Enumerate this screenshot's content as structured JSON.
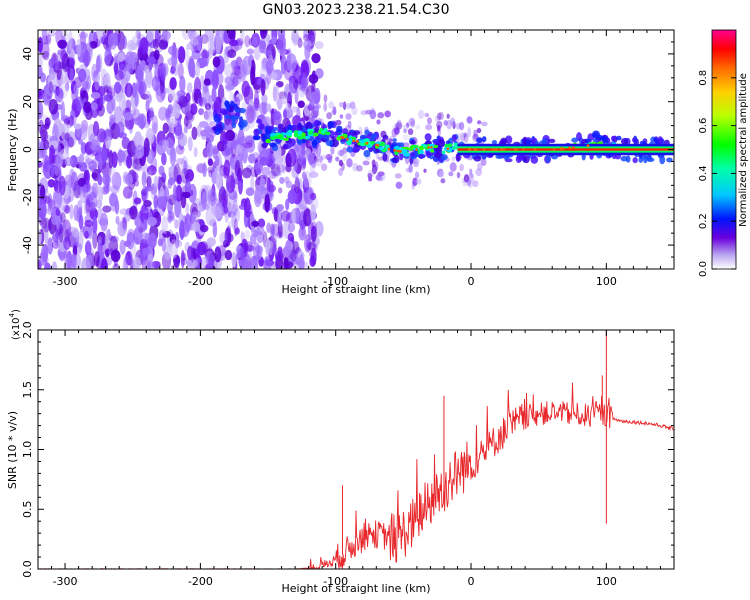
{
  "figure": {
    "title": "GN03.2023.238.21.54.C30"
  },
  "chart_data": [
    {
      "type": "heatmap",
      "title": "GN03.2023.238.21.54.C30",
      "xlabel": "Height of straight line (km)",
      "ylabel": "Frequency (Hz)",
      "xlim": [
        -320,
        150
      ],
      "ylim": [
        -50,
        50
      ],
      "xticks": [
        -300,
        -200,
        -100,
        0,
        100
      ],
      "yticks": [
        -40,
        -20,
        0,
        20,
        40
      ],
      "colorbar": {
        "label": "Normalized spectral amplitude",
        "range": [
          0.0,
          1.0
        ],
        "ticks": [
          "0.0",
          "0.2",
          "0.4",
          "0.6",
          "0.8"
        ],
        "tick_values": [
          0.0,
          0.2,
          0.4,
          0.6,
          0.8
        ]
      },
      "noise_region_x": [
        -320,
        -120
      ],
      "ridge": {
        "x": [
          -185,
          -180,
          -150,
          -130,
          -110,
          -100,
          -90,
          -80,
          -70,
          -60,
          -50,
          -40,
          -30,
          -20,
          -10,
          0,
          20,
          40,
          60,
          80,
          90,
          100,
          120,
          150
        ],
        "y": [
          12,
          16,
          5,
          6,
          7,
          6,
          4,
          3,
          2,
          0,
          -1,
          0,
          1,
          0,
          1,
          0,
          0,
          0,
          0,
          1,
          2,
          1,
          0,
          0
        ]
      },
      "flat_line_y": 0,
      "grid": false
    },
    {
      "type": "line",
      "xlabel": "Height of straight line (km)",
      "ylabel": "SNR (10 * v/v)",
      "y_multiplier": "(x10",
      "y_multiplier_exp": "4",
      "y_multiplier_close": ")",
      "xlim": [
        -320,
        150
      ],
      "ylim": [
        0,
        2.0
      ],
      "xticks": [
        -300,
        -200,
        -100,
        0,
        100
      ],
      "yticks": [
        "0.0",
        "0.5",
        "1.0",
        "1.5",
        "2.0"
      ],
      "ytick_values": [
        0,
        0.5,
        1.0,
        1.5,
        2.0
      ],
      "series": [
        {
          "color": "#e8262a",
          "x": [
            -320,
            -200,
            -130,
            -115,
            -105,
            -95,
            -85,
            -75,
            -65,
            -55,
            -45,
            -35,
            -25,
            -15,
            -5,
            0,
            10,
            20,
            30,
            40,
            50,
            60,
            70,
            80,
            90,
            95,
            100,
            105,
            110,
            120,
            130,
            140,
            150
          ],
          "y": [
            0.0,
            0.0,
            0.0,
            0.01,
            0.05,
            0.12,
            0.22,
            0.3,
            0.28,
            0.25,
            0.35,
            0.5,
            0.62,
            0.75,
            0.85,
            0.88,
            0.98,
            1.1,
            1.2,
            1.27,
            1.3,
            1.31,
            1.3,
            1.29,
            1.28,
            1.3,
            1.29,
            1.26,
            1.24,
            1.23,
            1.22,
            1.2,
            1.17
          ]
        }
      ],
      "grid": false
    }
  ]
}
